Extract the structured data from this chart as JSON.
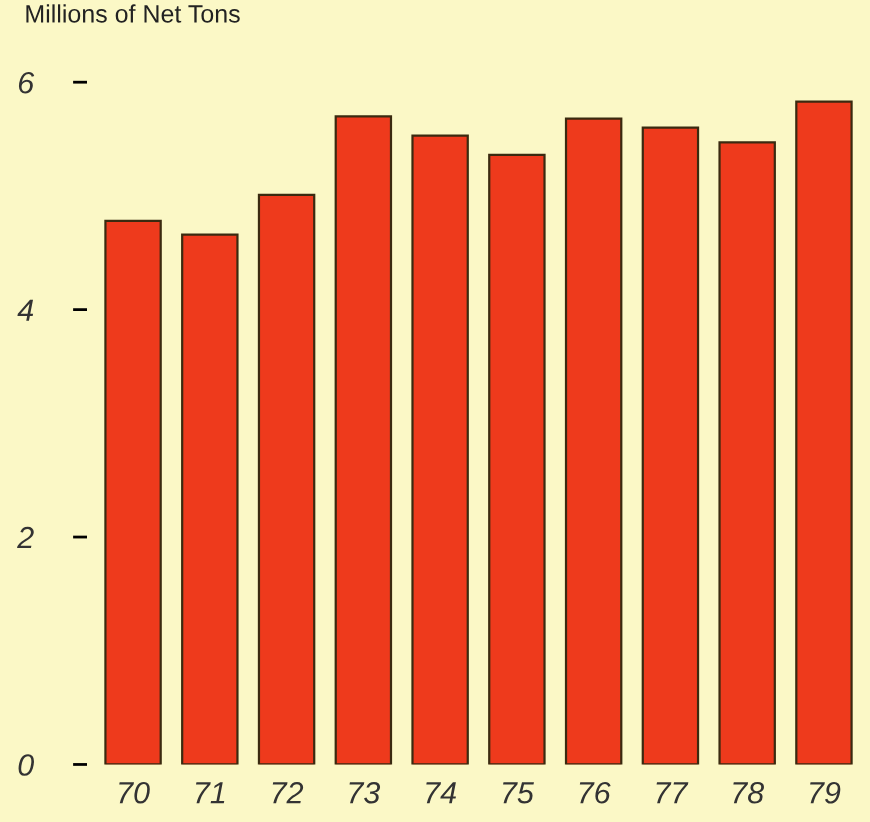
{
  "chart_data": {
    "type": "bar",
    "ylabel": "Millions of Net Tons",
    "categories": [
      "70",
      "71",
      "72",
      "73",
      "74",
      "75",
      "76",
      "77",
      "78",
      "79"
    ],
    "values": [
      4.78,
      4.66,
      5.01,
      5.7,
      5.53,
      5.36,
      5.68,
      5.6,
      5.47,
      5.83
    ],
    "color": "#ee3a1c",
    "ylim": [
      0,
      6
    ],
    "yticks": [
      0,
      2,
      4,
      6
    ],
    "grid": false
  }
}
